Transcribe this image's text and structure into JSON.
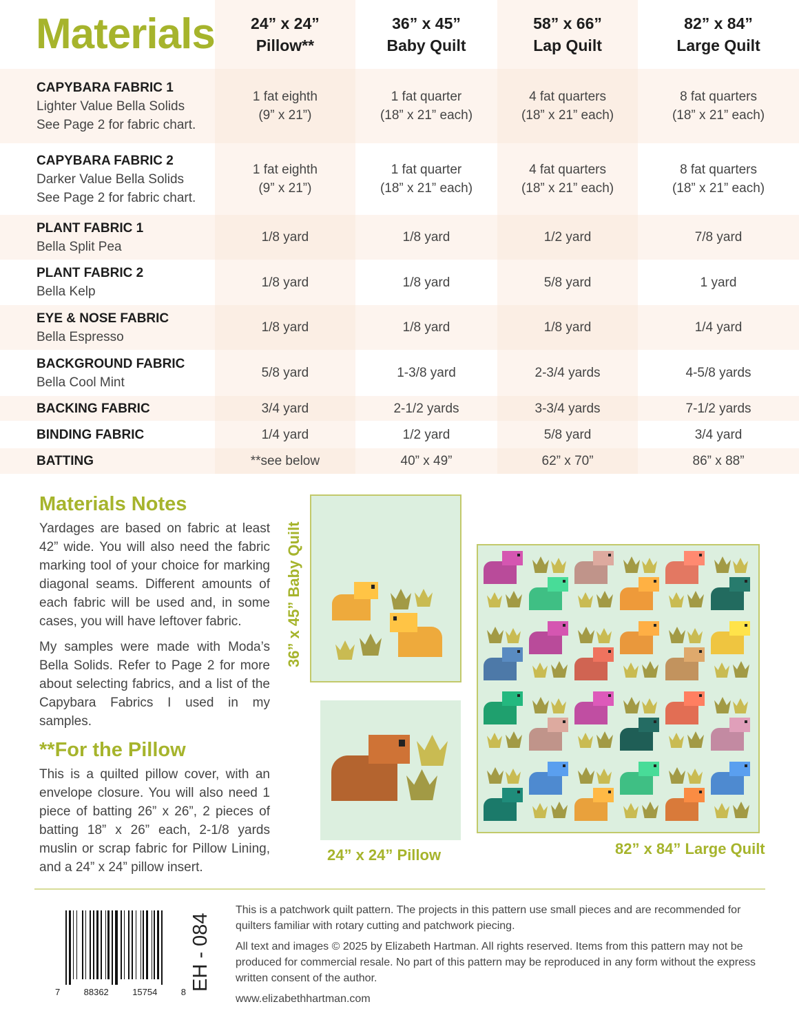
{
  "title": "Materials",
  "columns": [
    {
      "size": "24” x 24”",
      "name": "Pillow**"
    },
    {
      "size": "36” x 45”",
      "name": "Baby Quilt"
    },
    {
      "size": "58” x 66”",
      "name": "Lap Quilt"
    },
    {
      "size": "82” x 84”",
      "name": "Large Quilt"
    }
  ],
  "rows": [
    {
      "name": "CAPYBARA FABRIC 1",
      "sub": [
        "Lighter Value Bella Solids",
        "See Page 2 for fabric chart."
      ],
      "values": [
        "1 fat eighth\n(9” x 21”)",
        "1 fat quarter\n(18” x 21” each)",
        "4 fat quarters\n(18” x 21” each)",
        "8 fat quarters\n(18” x 21” each)"
      ]
    },
    {
      "name": "CAPYBARA FABRIC 2",
      "sub": [
        "Darker Value Bella Solids",
        "See Page 2 for fabric chart."
      ],
      "values": [
        "1 fat eighth\n(9” x 21”)",
        "1 fat quarter\n(18” x 21” each)",
        "4 fat quarters\n(18” x 21” each)",
        "8 fat quarters\n(18” x 21” each)"
      ]
    },
    {
      "name": "PLANT FABRIC 1",
      "sub": [
        "Bella Split Pea"
      ],
      "values": [
        "1/8 yard",
        "1/8 yard",
        "1/2 yard",
        "7/8 yard"
      ]
    },
    {
      "name": "PLANT FABRIC 2",
      "sub": [
        "Bella Kelp"
      ],
      "values": [
        "1/8 yard",
        "1/8 yard",
        "5/8 yard",
        "1 yard"
      ]
    },
    {
      "name": "EYE & NOSE FABRIC",
      "sub": [
        "Bella Espresso"
      ],
      "values": [
        "1/8 yard",
        "1/8 yard",
        "1/8 yard",
        "1/4 yard"
      ]
    },
    {
      "name": "BACKGROUND FABRIC",
      "sub": [
        "Bella Cool Mint"
      ],
      "values": [
        "5/8 yard",
        "1-3/8 yard",
        "2-3/4 yards",
        "4-5/8 yards"
      ]
    },
    {
      "name": "BACKING FABRIC",
      "sub": [],
      "values": [
        "3/4 yard",
        "2-1/2 yards",
        "3-3/4 yards",
        "7-1/2 yards"
      ]
    },
    {
      "name": "BINDING FABRIC",
      "sub": [],
      "values": [
        "1/4 yard",
        "1/2 yard",
        "5/8 yard",
        "3/4 yard"
      ]
    },
    {
      "name": "BATTING",
      "sub": [],
      "values": [
        "**see below",
        "40” x 49”",
        "62” x 70”",
        "86” x 88”"
      ]
    }
  ],
  "notes": {
    "heading": "Materials Notes",
    "p1": "Yardages are based on fabric at least 42” wide. You will also need the fabric marking tool of your choice for marking diagonal seams. Different amounts of each fabric will be used and, in some cases, you will have leftover fabric.",
    "p2": "My samples were made with Moda’s Bella Solids. Refer to Page 2 for more about selecting fabrics, and a list of the Capybara Fabrics I used in my samples."
  },
  "pillow": {
    "heading": "**For the Pillow",
    "text": "This is a quilted pillow cover, with an envelope closure. You will also need 1 piece of batting 26” x 26”, 2 pieces of batting 18” x 26” each, 2-1/8 yards muslin or scrap fabric for Pillow Lining, and a 24” x 24” pillow insert."
  },
  "images": {
    "baby": "36” x 45” Baby Quilt",
    "pillow": "24” x 24” Pillow",
    "large": "82” x 84” Large Quilt"
  },
  "footer": {
    "p1": "This is a patchwork quilt pattern. The projects in this pattern use small pieces and are recommended for quilters familiar with rotary cutting and patchwork piecing.",
    "p2": "All text and images © 2025 by Elizabeth Hartman. All rights reserved. Items from this pattern may not be produced for commercial resale. No part of this pattern may be reproduced in any form without the express written consent of the author.",
    "url": "www.elizabethhartman.com",
    "code": "EH - 084",
    "barcode": [
      "7",
      "88362",
      "15754",
      "8"
    ]
  },
  "colors": {
    "accent": "#a6b42c",
    "mint": "#dcefdf",
    "tint": "#fdf4ee"
  }
}
